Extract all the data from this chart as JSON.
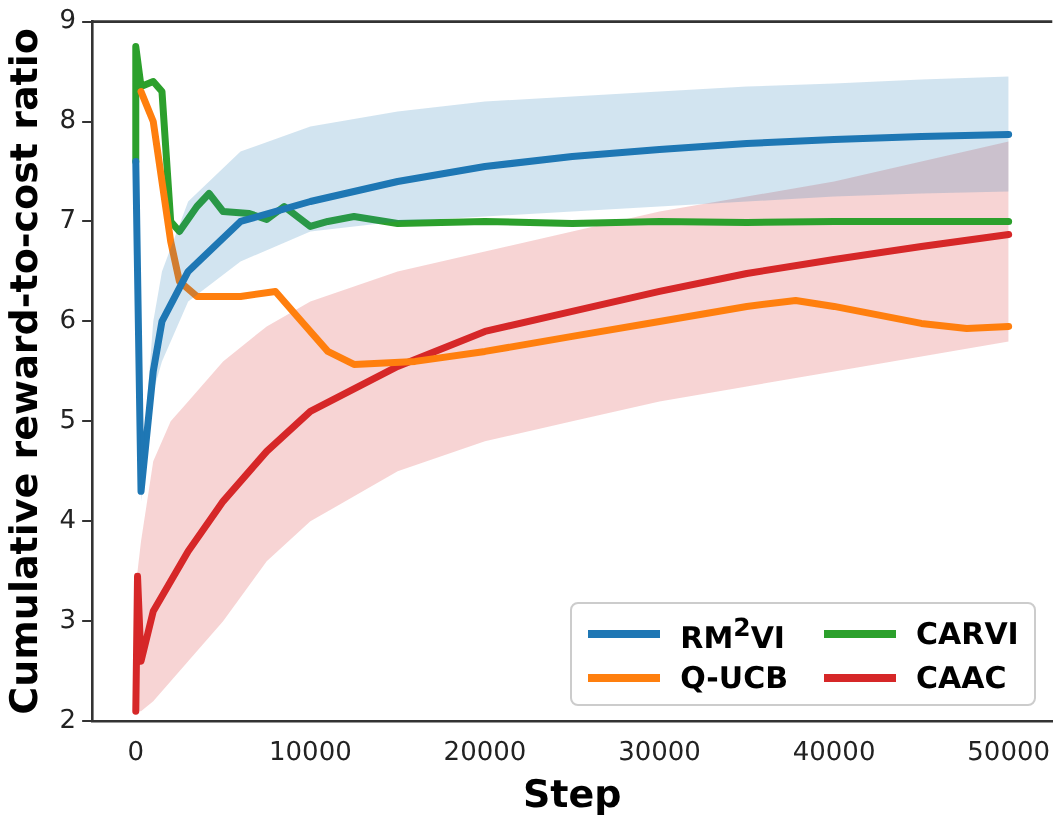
{
  "chart_data": {
    "type": "line",
    "xlabel": "Step",
    "ylabel": "Cumulative reward-to-cost ratio",
    "xlim": [
      -2500,
      52500
    ],
    "xticks": [
      0,
      10000,
      20000,
      30000,
      40000,
      50000
    ],
    "ylim": [
      2,
      9
    ],
    "yticks": [
      2,
      3,
      4,
      5,
      6,
      7,
      8,
      9
    ],
    "legend": "bottom right",
    "grid": false,
    "marker": "none",
    "line_style": "solid",
    "series": [
      {
        "name": "RM$^{2}$VI",
        "color": "#1f77b4",
        "x": [
          0,
          300,
          1000,
          1500,
          3000,
          6000,
          10000,
          15000,
          20000,
          25000,
          30000,
          35000,
          40000,
          45000,
          50000
        ],
        "values": [
          7.6,
          4.3,
          5.5,
          6.0,
          6.5,
          7.0,
          7.2,
          7.4,
          7.55,
          7.65,
          7.72,
          7.78,
          7.82,
          7.85,
          7.87
        ],
        "lower": [
          7.6,
          4.2,
          5.3,
          5.6,
          6.2,
          6.6,
          6.9,
          7.0,
          7.05,
          7.1,
          7.15,
          7.2,
          7.25,
          7.28,
          7.3
        ],
        "upper": [
          7.6,
          4.4,
          6.0,
          6.5,
          7.2,
          7.7,
          7.95,
          8.1,
          8.2,
          8.25,
          8.3,
          8.35,
          8.38,
          8.42,
          8.45
        ]
      },
      {
        "name": "Q-UCB",
        "color": "#ff7f0e",
        "x": [
          300,
          1000,
          2000,
          2500,
          3500,
          6000,
          8000,
          9500,
          11000,
          12500,
          16000,
          20000,
          25000,
          30000,
          35000,
          37800,
          40000,
          45000,
          47600,
          50000
        ],
        "values": [
          8.3,
          8.0,
          6.8,
          6.4,
          6.25,
          6.25,
          6.3,
          6.0,
          5.7,
          5.57,
          5.6,
          5.7,
          5.85,
          6.0,
          6.15,
          6.21,
          6.15,
          5.98,
          5.93,
          5.95
        ]
      },
      {
        "name": "CARVI",
        "color": "#2ca02c",
        "x": [
          0,
          0,
          300,
          1000,
          1500,
          2000,
          2500,
          3500,
          4200,
          5000,
          6500,
          7500,
          8500,
          10000,
          11000,
          12500,
          15000,
          20000,
          25000,
          30000,
          35000,
          40000,
          45000,
          50000
        ],
        "values": [
          7.6,
          8.75,
          8.35,
          8.4,
          8.3,
          7.0,
          6.9,
          7.15,
          7.28,
          7.1,
          7.08,
          7.02,
          7.15,
          6.95,
          7.0,
          7.05,
          6.98,
          7.0,
          6.98,
          7.0,
          6.99,
          7.0,
          7.0,
          7.0
        ]
      },
      {
        "name": "CAAC",
        "color": "#d62728",
        "x": [
          0,
          100,
          300,
          1000,
          2000,
          3000,
          5000,
          7500,
          10000,
          15000,
          20000,
          25000,
          30000,
          35000,
          40000,
          45000,
          50000
        ],
        "values": [
          2.1,
          3.45,
          2.6,
          3.1,
          3.4,
          3.7,
          4.2,
          4.7,
          5.1,
          5.55,
          5.9,
          6.1,
          6.3,
          6.48,
          6.62,
          6.75,
          6.87
        ],
        "lower": [
          2.1,
          2.1,
          2.1,
          2.2,
          2.4,
          2.6,
          3.0,
          3.6,
          4.0,
          4.5,
          4.8,
          5.0,
          5.2,
          5.35,
          5.5,
          5.65,
          5.8
        ],
        "upper": [
          2.2,
          3.5,
          3.8,
          4.6,
          5.0,
          5.2,
          5.6,
          5.95,
          6.2,
          6.5,
          6.7,
          6.9,
          7.1,
          7.25,
          7.4,
          7.6,
          7.8
        ]
      }
    ]
  }
}
